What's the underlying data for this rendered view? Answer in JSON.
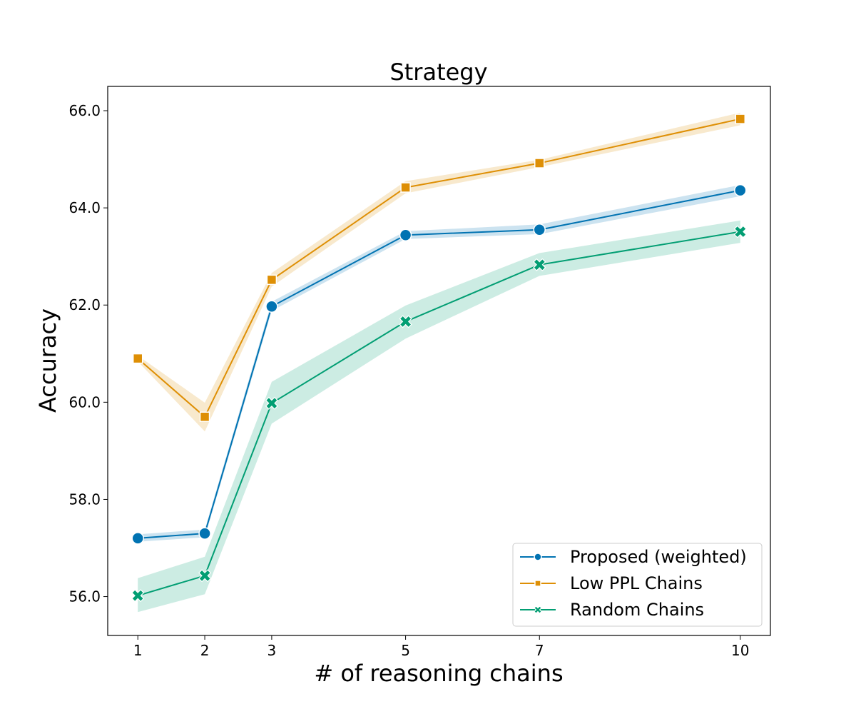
{
  "chart_data": {
    "type": "line",
    "title": "Strategy",
    "xlabel": "# of reasoning chains",
    "ylabel": "Accuracy",
    "x": [
      1,
      2,
      3,
      5,
      7,
      10
    ],
    "x_tick_labels": [
      "1",
      "2",
      "3",
      "5",
      "7",
      "10"
    ],
    "xlim": [
      0.55,
      10.45
    ],
    "ylim": [
      55.2,
      66.5
    ],
    "y_ticks": [
      56,
      58,
      60,
      62,
      64,
      66
    ],
    "y_tick_labels": [
      "56.0",
      "58.0",
      "60.0",
      "62.0",
      "64.0",
      "66.0"
    ],
    "grid": false,
    "legend_position": "lower-right",
    "series": [
      {
        "name": "Proposed (weighted)",
        "color": "#0173b2",
        "marker": "circle",
        "values": [
          57.2,
          57.3,
          61.97,
          63.44,
          63.55,
          64.36
        ],
        "band_low": [
          57.13,
          57.22,
          61.88,
          63.36,
          63.46,
          64.24
        ],
        "band_high": [
          57.28,
          57.38,
          62.07,
          63.52,
          63.66,
          64.47
        ]
      },
      {
        "name": "Low PPL Chains",
        "color": "#de8f05",
        "marker": "square",
        "values": [
          60.9,
          59.7,
          62.52,
          64.42,
          64.92,
          65.83
        ],
        "band_low": [
          60.84,
          59.4,
          62.38,
          64.3,
          64.84,
          65.7
        ],
        "band_high": [
          60.96,
          59.99,
          62.66,
          64.55,
          64.99,
          65.96
        ]
      },
      {
        "name": "Random Chains",
        "color": "#029e73",
        "marker": "x",
        "values": [
          56.02,
          56.43,
          59.98,
          61.66,
          62.83,
          63.51
        ],
        "band_low": [
          55.68,
          56.05,
          59.56,
          61.31,
          62.6,
          63.28
        ],
        "band_high": [
          56.38,
          56.82,
          60.42,
          61.99,
          63.07,
          63.74
        ]
      }
    ]
  }
}
